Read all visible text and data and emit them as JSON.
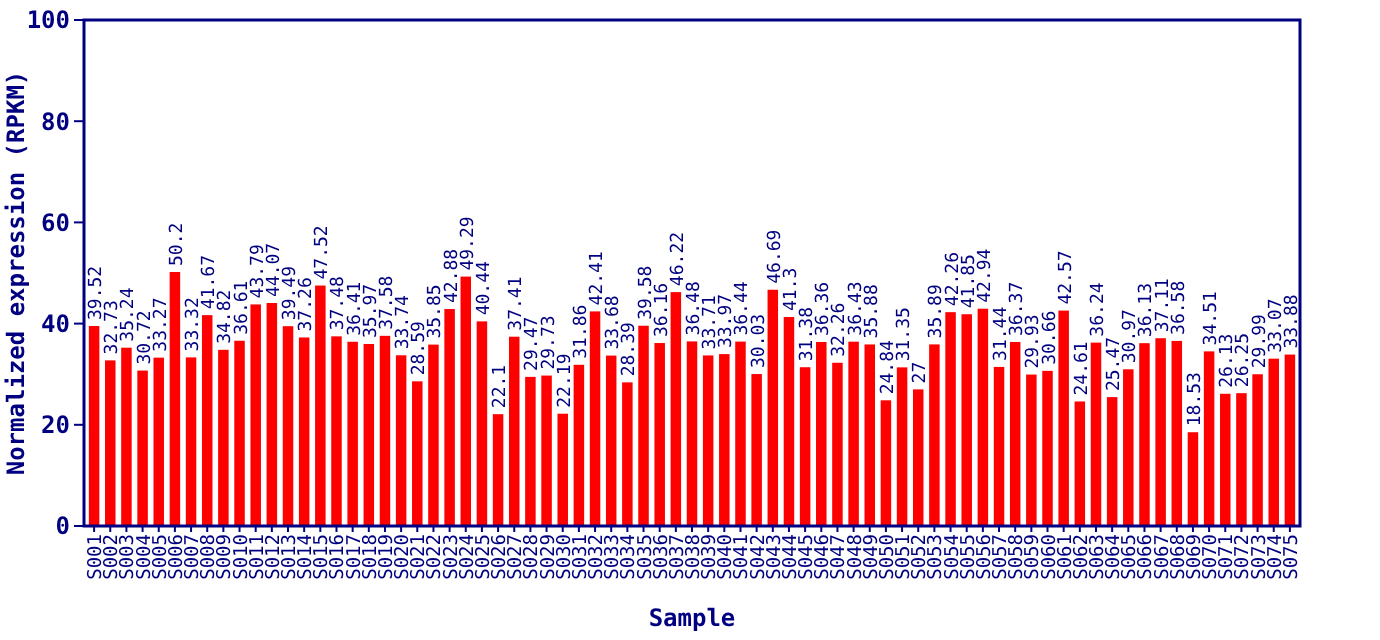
{
  "chart_data": {
    "type": "bar",
    "xlabel": "Sample",
    "ylabel": "Normalized expression (RPKM)",
    "categories": [
      "S001",
      "S002",
      "S003",
      "S004",
      "S005",
      "S006",
      "S007",
      "S008",
      "S009",
      "S010",
      "S011",
      "S012",
      "S013",
      "S014",
      "S015",
      "S016",
      "S017",
      "S018",
      "S019",
      "S020",
      "S021",
      "S022",
      "S023",
      "S024",
      "S025",
      "S026",
      "S027",
      "S028",
      "S029",
      "S030",
      "S031",
      "S032",
      "S033",
      "S034",
      "S035",
      "S036",
      "S037",
      "S038",
      "S039",
      "S040",
      "S041",
      "S042",
      "S043",
      "S044",
      "S045",
      "S046",
      "S047",
      "S048",
      "S049",
      "S050",
      "S051",
      "S052",
      "S053",
      "S054",
      "S055",
      "S056",
      "S057",
      "S058",
      "S059",
      "S060",
      "S061",
      "S062",
      "S063",
      "S064",
      "S065",
      "S066",
      "S067",
      "S068",
      "S069",
      "S070",
      "S071",
      "S072",
      "S073",
      "S074",
      "S075"
    ],
    "values": [
      39.52,
      32.73,
      35.24,
      30.72,
      33.27,
      50.2,
      33.32,
      41.67,
      34.82,
      36.61,
      43.79,
      44.07,
      39.49,
      37.26,
      47.52,
      37.48,
      36.41,
      35.97,
      37.58,
      33.74,
      28.59,
      35.85,
      42.88,
      49.29,
      40.44,
      22.1,
      37.41,
      29.47,
      29.73,
      22.19,
      31.86,
      42.41,
      33.68,
      28.39,
      39.58,
      36.16,
      46.22,
      36.48,
      33.71,
      33.97,
      36.44,
      30.03,
      46.69,
      41.3,
      31.38,
      36.36,
      32.26,
      36.43,
      35.88,
      24.84,
      31.35,
      27,
      35.89,
      42.26,
      41.85,
      42.94,
      31.44,
      36.37,
      29.93,
      30.66,
      42.57,
      24.61,
      36.24,
      25.47,
      30.97,
      36.13,
      37.11,
      36.58,
      18.53,
      34.51,
      26.13,
      26.25,
      29.99,
      33.07,
      33.88
    ],
    "color": "#ff0000",
    "data_labels": true,
    "ylim": [
      0,
      100
    ],
    "yticks": [
      0,
      20,
      40,
      60,
      80,
      100
    ],
    "grid": false
  }
}
